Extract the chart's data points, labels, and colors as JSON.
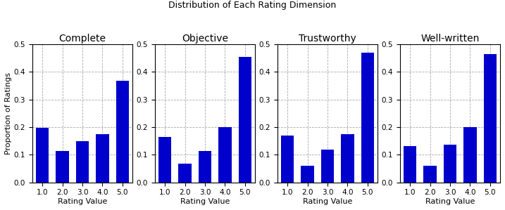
{
  "title": "Distribution of Each Rating Dimension",
  "subplots": [
    {
      "title": "Complete",
      "values": [
        0.197,
        0.113,
        0.148,
        0.175,
        0.367
      ]
    },
    {
      "title": "Objective",
      "values": [
        0.163,
        0.067,
        0.113,
        0.2,
        0.453
      ]
    },
    {
      "title": "Trustworthy",
      "values": [
        0.17,
        0.06,
        0.118,
        0.175,
        0.47
      ]
    },
    {
      "title": "Well-written",
      "values": [
        0.13,
        0.06,
        0.135,
        0.2,
        0.465
      ]
    }
  ],
  "x_labels": [
    "1.0",
    "2.0",
    "3.0",
    "4.0",
    "5.0"
  ],
  "x_values": [
    1.0,
    2.0,
    3.0,
    4.0,
    5.0
  ],
  "xlabel": "Rating Value",
  "ylabel": "Proportion of Ratings",
  "ylim": [
    0.0,
    0.5
  ],
  "yticks": [
    0.0,
    0.1,
    0.2,
    0.3,
    0.4,
    0.5
  ],
  "bar_color": "#0000CC",
  "bar_width": 0.65,
  "grid_color": "#aaaaaa",
  "grid_linestyle": "--",
  "title_fontsize": 9,
  "subplot_title_fontsize": 10,
  "label_fontsize": 8,
  "tick_fontsize": 7.5
}
